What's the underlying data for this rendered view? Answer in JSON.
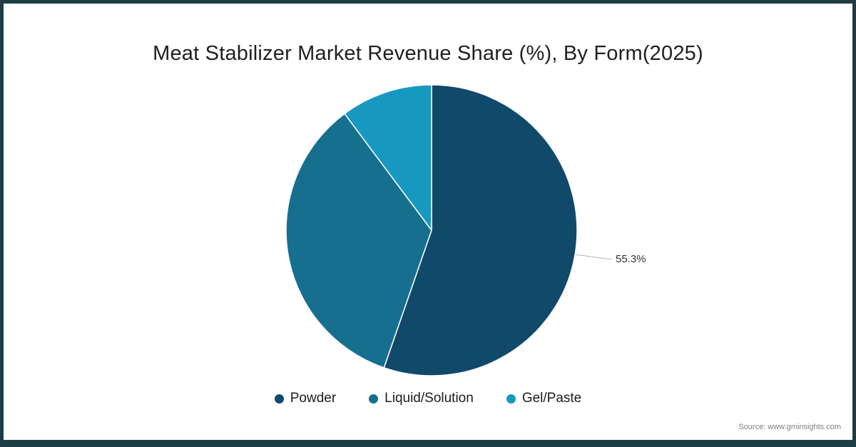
{
  "title": "Meat Stabilizer Market Revenue Share (%), By Form(2025)",
  "source": "Source: www.gminsights.com",
  "frame_color": "#1E3D45",
  "annotation": {
    "label": "55.3%"
  },
  "chart_data": {
    "type": "pie",
    "title": "Meat Stabilizer Market Revenue Share (%), By Form(2025)",
    "categories": [
      "Powder",
      "Liquid/Solution",
      "Gel/Paste"
    ],
    "values": [
      55.3,
      34.5,
      10.2
    ],
    "colors": [
      "#11496B",
      "#176F8F",
      "#1798C0"
    ],
    "start_angle_deg": 0,
    "direction": "clockwise",
    "data_labels": [
      {
        "category": "Powder",
        "label": "55.3%"
      }
    ],
    "legend_position": "bottom"
  },
  "legend": {
    "items": [
      {
        "label": "Powder",
        "color": "#11496B"
      },
      {
        "label": "Liquid/Solution",
        "color": "#176F8F"
      },
      {
        "label": "Gel/Paste",
        "color": "#1798C0"
      }
    ]
  }
}
